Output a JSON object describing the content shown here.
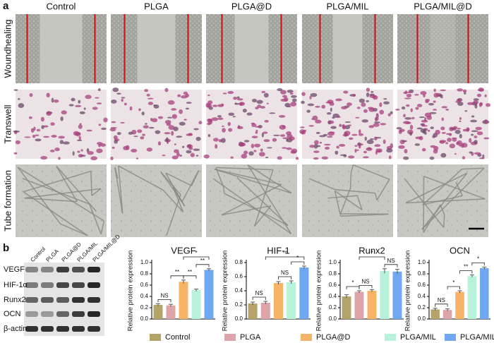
{
  "panel_a": {
    "label": "a",
    "columns": [
      "Control",
      "PLGA",
      "PLGA@D",
      "PLGA/MIL",
      "PLGA/MIL@D"
    ],
    "rows": [
      "Woundhealing",
      "Transwell",
      "Tube formation"
    ]
  },
  "panel_b": {
    "label": "b",
    "blot": {
      "lanes": [
        "Control",
        "PLGA",
        "PLGA@D",
        "PLGA/MIL",
        "PLGA/MIL@D"
      ],
      "proteins": [
        "VEGF",
        "HIF-1α",
        "Runx2",
        "OCN",
        "β-actin"
      ]
    }
  },
  "legend": [
    {
      "name": "Control",
      "color": "#b5a46a"
    },
    {
      "name": "PLGA",
      "color": "#dda4aa"
    },
    {
      "name": "PLGA@D",
      "color": "#f7b366"
    },
    {
      "name": "PLGA/MIL",
      "color": "#b8f2da"
    },
    {
      "name": "PLGA/MIL@D",
      "color": "#6fa8f0"
    }
  ],
  "chart_data": [
    {
      "type": "bar",
      "title": "VEGF",
      "y_label": "Relative protein expression",
      "values": [
        0.25,
        0.24,
        0.66,
        0.51,
        0.87
      ],
      "errors": [
        0.02,
        0.02,
        0.03,
        0.02,
        0.02
      ],
      "ylim": [
        0,
        1.0
      ],
      "yticks": [
        {
          "value": 0,
          "label": "0.0"
        },
        {
          "value": 0.2,
          "label": "0.2"
        },
        {
          "value": 0.4,
          "label": "0.4"
        },
        {
          "value": 0.6,
          "label": "0.6"
        },
        {
          "value": 0.8,
          "label": "0.8"
        },
        {
          "value": 1.0,
          "label": "1.0"
        }
      ],
      "annotations": [
        {
          "text": "NS",
          "from": 0,
          "to": 1
        },
        {
          "text": "**",
          "from": 1,
          "to": 2
        },
        {
          "text": "**",
          "from": 2,
          "to": 3
        },
        {
          "text": "**",
          "from": 3,
          "to": 4
        },
        {
          "text": "*",
          "from": 2,
          "to": 4
        }
      ]
    },
    {
      "type": "bar",
      "title": "HIF-1",
      "y_label": "Relative protein expression",
      "values": [
        0.22,
        0.23,
        0.51,
        0.52,
        0.73
      ],
      "errors": [
        0.02,
        0.02,
        0.02,
        0.02,
        0.02
      ],
      "ylim": [
        0,
        0.8
      ],
      "yticks": [
        {
          "value": 0,
          "label": "0.0"
        },
        {
          "value": 0.2,
          "label": "0.2"
        },
        {
          "value": 0.4,
          "label": "0.4"
        },
        {
          "value": 0.6,
          "label": "0.6"
        },
        {
          "value": 0.8,
          "label": "0.8"
        }
      ],
      "annotations": [
        {
          "text": "NS",
          "from": 0,
          "to": 1
        },
        {
          "text": "NS",
          "from": 2,
          "to": 3
        },
        {
          "text": "*",
          "from": 3,
          "to": 4
        },
        {
          "text": "**",
          "from": 1,
          "to": 4
        }
      ]
    },
    {
      "type": "bar",
      "title": "Runx2",
      "y_label": "Relative protein expression",
      "values": [
        0.4,
        0.48,
        0.5,
        0.85,
        0.84
      ],
      "errors": [
        0.03,
        0.02,
        0.02,
        0.04,
        0.04
      ],
      "ylim": [
        0,
        1.0
      ],
      "yticks": [
        {
          "value": 0,
          "label": "0.0"
        },
        {
          "value": 0.2,
          "label": "0.2"
        },
        {
          "value": 0.4,
          "label": "0.4"
        },
        {
          "value": 0.6,
          "label": "0.6"
        },
        {
          "value": 0.8,
          "label": "0.8"
        },
        {
          "value": 1.0,
          "label": "1.0"
        }
      ],
      "annotations": [
        {
          "text": "*",
          "from": 0,
          "to": 1
        },
        {
          "text": "NS",
          "from": 1,
          "to": 2
        },
        {
          "text": "NS",
          "from": 3,
          "to": 4
        },
        {
          "text": "*",
          "from": 1,
          "to": 3
        }
      ]
    },
    {
      "type": "bar",
      "title": "OCN",
      "y_label": "Relative protein expression",
      "values": [
        0.17,
        0.16,
        0.48,
        0.76,
        0.9
      ],
      "errors": [
        0.02,
        0.02,
        0.02,
        0.02,
        0.02
      ],
      "ylim": [
        0,
        1.0
      ],
      "yticks": [
        {
          "value": 0,
          "label": "0.0"
        },
        {
          "value": 0.2,
          "label": "0.2"
        },
        {
          "value": 0.4,
          "label": "0.4"
        },
        {
          "value": 0.6,
          "label": "0.6"
        },
        {
          "value": 0.8,
          "label": "0.8"
        },
        {
          "value": 1.0,
          "label": "1.0"
        }
      ],
      "annotations": [
        {
          "text": "NS",
          "from": 0,
          "to": 1
        },
        {
          "text": "*",
          "from": 1,
          "to": 2
        },
        {
          "text": "**",
          "from": 2,
          "to": 3
        },
        {
          "text": "*",
          "from": 3,
          "to": 4
        }
      ]
    }
  ]
}
